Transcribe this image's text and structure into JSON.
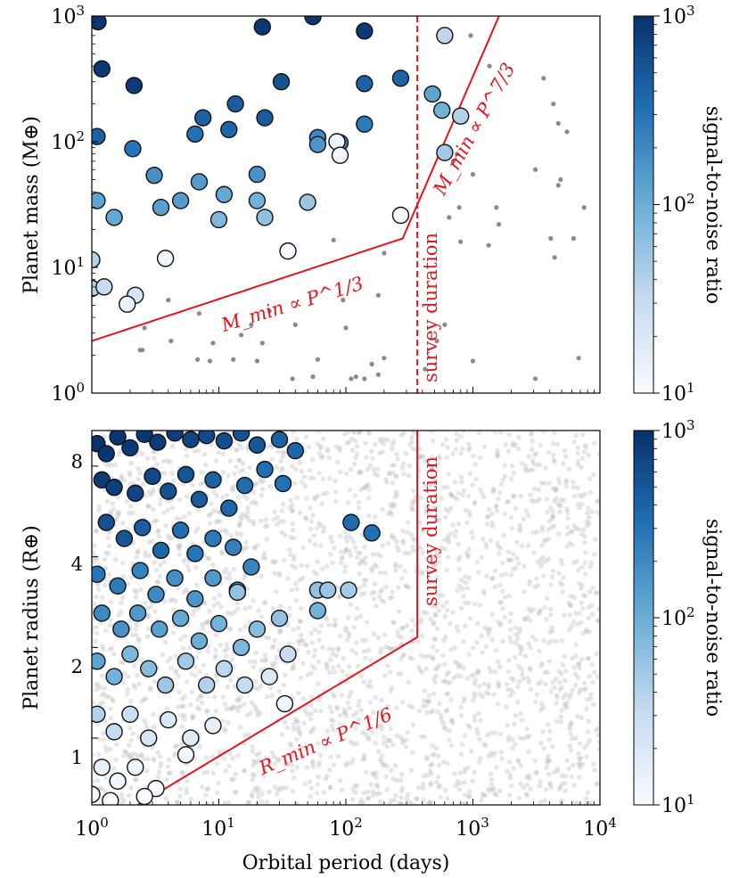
{
  "chart_data": [
    {
      "type": "scatter",
      "panel": "top",
      "xlabel": "",
      "ylabel": "Planet mass (M⊕)",
      "xscale": "log",
      "yscale": "log",
      "xlim": [
        1,
        10000
      ],
      "ylim": [
        1,
        1000
      ],
      "xticks": [
        1,
        10,
        100,
        1000,
        10000
      ],
      "yticks": [
        1,
        10,
        100,
        1000
      ],
      "tick_labels_x": [],
      "tick_labels_y": [
        "10^0",
        "10^1",
        "10^2",
        "10^3"
      ],
      "colorbar": {
        "label": "signal-to-noise ratio",
        "range": [
          10,
          1000
        ],
        "scale": "log",
        "cmap": "Blues",
        "tick_labels": [
          "10^1",
          "10^2",
          "10^3"
        ]
      },
      "detected": [
        [
          1.12,
          900,
          900
        ],
        [
          1.2,
          380,
          860
        ],
        [
          2.15,
          280,
          820
        ],
        [
          22,
          820,
          880
        ],
        [
          55,
          990,
          880
        ],
        [
          140,
          760,
          860
        ],
        [
          31,
          300,
          540
        ],
        [
          13.5,
          200,
          440
        ],
        [
          7.5,
          155,
          420
        ],
        [
          23,
          155,
          460
        ],
        [
          12,
          125,
          380
        ],
        [
          6.5,
          115,
          320
        ],
        [
          1.1,
          110,
          420
        ],
        [
          2.1,
          88,
          300
        ],
        [
          140,
          290,
          420
        ],
        [
          270,
          320,
          400
        ],
        [
          140,
          138,
          260
        ],
        [
          90,
          98,
          240
        ],
        [
          60,
          108,
          200
        ],
        [
          60,
          95,
          160
        ],
        [
          3.1,
          54,
          180
        ],
        [
          7,
          48,
          140
        ],
        [
          20,
          55,
          170
        ],
        [
          5,
          34,
          140
        ],
        [
          3.5,
          30,
          130
        ],
        [
          1.1,
          34,
          120
        ],
        [
          1.5,
          25,
          110
        ],
        [
          11,
          38,
          110
        ],
        [
          20,
          34,
          90
        ],
        [
          10,
          24,
          80
        ],
        [
          23,
          25,
          60
        ],
        [
          50,
          33,
          55
        ],
        [
          1.0,
          11.5,
          40
        ],
        [
          1.0,
          6.8,
          40
        ],
        [
          1.25,
          7,
          30
        ],
        [
          2.2,
          6,
          22
        ],
        [
          1.9,
          5.1,
          14
        ],
        [
          3.8,
          11.8,
          12
        ],
        [
          35,
          13.5,
          10
        ],
        [
          270,
          26,
          10
        ],
        [
          85,
          100,
          12
        ],
        [
          90,
          78,
          12
        ],
        [
          600,
          700,
          35
        ],
        [
          480,
          240,
          120
        ],
        [
          570,
          178,
          90
        ],
        [
          800,
          160,
          40
        ],
        [
          600,
          82,
          50
        ]
      ],
      "undetected": [
        [
          960,
          700
        ],
        [
          750,
          80
        ],
        [
          700,
          70
        ],
        [
          650,
          25
        ],
        [
          780,
          30
        ],
        [
          1000,
          55
        ],
        [
          800,
          16
        ],
        [
          1350,
          400
        ],
        [
          1330,
          15
        ],
        [
          1530,
          30
        ],
        [
          1600,
          22
        ],
        [
          3100,
          60
        ],
        [
          3600,
          320
        ],
        [
          4100,
          17
        ],
        [
          4400,
          12
        ],
        [
          4300,
          200
        ],
        [
          4700,
          140
        ],
        [
          4900,
          50
        ],
        [
          4700,
          45
        ],
        [
          5500,
          120
        ],
        [
          6200,
          17
        ],
        [
          7500,
          30
        ],
        [
          6800,
          1.9
        ],
        [
          3100,
          1.3
        ],
        [
          1000,
          1.8
        ],
        [
          600,
          3.5
        ],
        [
          520,
          2.6
        ],
        [
          420,
          1.55
        ],
        [
          180,
          1.4
        ],
        [
          200,
          1.9
        ],
        [
          120,
          1.35
        ],
        [
          110,
          1.3
        ],
        [
          95,
          5.5
        ],
        [
          80,
          16.5
        ],
        [
          60,
          1.85
        ],
        [
          55,
          1.35
        ],
        [
          40,
          3.5
        ],
        [
          38,
          1.3
        ],
        [
          25,
          4.5
        ],
        [
          22,
          2.5
        ],
        [
          20,
          1.8
        ],
        [
          18,
          3.5
        ],
        [
          15,
          2.9
        ],
        [
          13,
          1.85
        ],
        [
          9,
          2.5
        ],
        [
          7,
          4.3
        ],
        [
          6.8,
          1.85
        ],
        [
          4,
          5.5
        ],
        [
          2.6,
          3.3
        ],
        [
          2.5,
          2.2
        ],
        [
          2.4,
          2.2
        ],
        [
          200,
          13
        ],
        [
          180,
          6
        ],
        [
          100,
          3.3
        ],
        [
          140,
          1.3
        ],
        [
          8.5,
          1.8
        ],
        [
          4.2,
          2.6
        ],
        [
          160,
          1.7
        ]
      ],
      "annotations": [
        {
          "text": "M_min ∝ P^1/3",
          "kind": "scaling-law line"
        },
        {
          "text": "M_min ∝ P^7/3",
          "kind": "scaling-law line"
        },
        {
          "text": "survey duration",
          "kind": "vertical dashed line",
          "x": 365
        }
      ]
    },
    {
      "type": "scatter",
      "panel": "bottom",
      "xlabel": "Orbital period (days)",
      "ylabel": "Planet radius (R⊕)",
      "xscale": "log",
      "yscale": "log",
      "xlim": [
        1,
        10000
      ],
      "ylim": [
        0.6,
        10.5
      ],
      "xticks": [
        1,
        10,
        100,
        1000,
        10000
      ],
      "yticks": [
        1,
        2,
        4,
        8
      ],
      "tick_labels_x": [
        "10^0",
        "10^1",
        "10^2",
        "10^3",
        "10^4"
      ],
      "tick_labels_y": [
        "1",
        "2",
        "4",
        "8"
      ],
      "colorbar": {
        "label": "signal-to-noise ratio",
        "range": [
          10,
          1000
        ],
        "scale": "log",
        "cmap": "Blues",
        "tick_labels": [
          "10^1",
          "10^2",
          "10^3"
        ]
      },
      "detected_sample": [
        [
          1.1,
          9.5,
          950
        ],
        [
          1.3,
          8.8,
          900
        ],
        [
          1.6,
          10,
          900
        ],
        [
          2.0,
          9.2,
          850
        ],
        [
          2.6,
          10.2,
          880
        ],
        [
          3.3,
          9.6,
          820
        ],
        [
          4.5,
          10.3,
          760
        ],
        [
          6,
          9.8,
          700
        ],
        [
          8,
          10.1,
          640
        ],
        [
          11,
          9.7,
          600
        ],
        [
          15,
          10.3,
          560
        ],
        [
          20,
          9.4,
          500
        ],
        [
          30,
          9.8,
          420
        ],
        [
          40,
          9.0,
          380
        ],
        [
          1.2,
          7.2,
          820
        ],
        [
          1.5,
          6.8,
          760
        ],
        [
          2.2,
          6.5,
          700
        ],
        [
          3,
          7.4,
          650
        ],
        [
          4,
          6.6,
          560
        ],
        [
          5.5,
          7.5,
          520
        ],
        [
          7,
          6.2,
          460
        ],
        [
          9,
          7.2,
          420
        ],
        [
          12,
          5.8,
          380
        ],
        [
          16,
          6.9,
          350
        ],
        [
          23,
          7.8,
          330
        ],
        [
          32,
          7.0,
          310
        ],
        [
          1.3,
          5.2,
          560
        ],
        [
          1.8,
          4.6,
          500
        ],
        [
          2.5,
          5.0,
          440
        ],
        [
          3.5,
          4.2,
          380
        ],
        [
          5,
          4.9,
          330
        ],
        [
          6.5,
          4.1,
          300
        ],
        [
          9,
          4.6,
          270
        ],
        [
          13,
          4.3,
          240
        ],
        [
          18,
          3.7,
          220
        ],
        [
          110,
          5.2,
          350
        ],
        [
          160,
          4.8,
          320
        ],
        [
          1.1,
          3.5,
          300
        ],
        [
          1.6,
          3.2,
          260
        ],
        [
          2.4,
          3.6,
          230
        ],
        [
          3.2,
          3.0,
          200
        ],
        [
          4.5,
          3.4,
          180
        ],
        [
          6.5,
          2.9,
          160
        ],
        [
          9,
          3.4,
          150
        ],
        [
          14,
          3.1,
          140
        ],
        [
          14,
          3.05,
          60
        ],
        [
          60,
          3.1,
          60
        ],
        [
          72,
          3.1,
          55
        ],
        [
          105,
          3.1,
          50
        ],
        [
          60,
          2.65,
          90
        ],
        [
          1.2,
          2.6,
          200
        ],
        [
          1.7,
          2.3,
          170
        ],
        [
          2.3,
          2.6,
          150
        ],
        [
          3.4,
          2.3,
          130
        ],
        [
          5,
          2.5,
          110
        ],
        [
          7,
          2.1,
          100
        ],
        [
          10,
          2.4,
          90
        ],
        [
          15,
          2.0,
          80
        ],
        [
          20,
          2.3,
          70
        ],
        [
          30,
          2.5,
          60
        ],
        [
          35,
          1.9,
          30
        ],
        [
          1.1,
          1.8,
          120
        ],
        [
          1.5,
          1.6,
          90
        ],
        [
          2.0,
          1.9,
          80
        ],
        [
          2.8,
          1.7,
          70
        ],
        [
          3.8,
          1.5,
          55
        ],
        [
          5.5,
          1.8,
          50
        ],
        [
          8,
          1.5,
          40
        ],
        [
          11,
          1.7,
          35
        ],
        [
          16,
          1.5,
          30
        ],
        [
          25,
          1.6,
          20
        ],
        [
          33,
          1.3,
          12
        ],
        [
          1.1,
          1.2,
          40
        ],
        [
          1.5,
          1.05,
          30
        ],
        [
          2.0,
          1.2,
          28
        ],
        [
          2.8,
          1.0,
          22
        ],
        [
          4,
          1.15,
          20
        ],
        [
          6,
          1.0,
          18
        ],
        [
          9,
          1.1,
          15
        ],
        [
          5.5,
          0.88,
          12
        ],
        [
          1.2,
          0.8,
          15
        ],
        [
          1.6,
          0.72,
          12
        ],
        [
          2.2,
          0.8,
          12
        ],
        [
          3.2,
          0.68,
          10
        ],
        [
          1.0,
          0.65,
          10
        ],
        [
          1.4,
          0.62,
          10
        ],
        [
          2.6,
          0.64,
          10
        ]
      ],
      "annotations": [
        {
          "text": "R_min ∝ P^1/6",
          "kind": "scaling-law line"
        },
        {
          "text": "survey duration",
          "kind": "vertical line",
          "x": 365
        }
      ]
    }
  ]
}
